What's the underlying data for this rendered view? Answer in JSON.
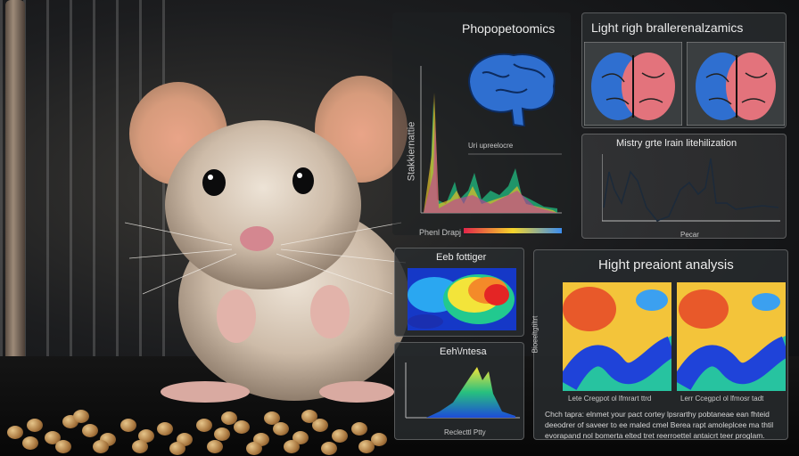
{
  "panels": {
    "top_left_title": "Phopopetoomics",
    "top_right_title": "Light righ brallerenalzamics",
    "mid_right_title": "Mistry grte lrain litehilization",
    "heatmap_small_title": "Eeb fottiger",
    "histogram_small_title": "Eeh\\/ntesa",
    "analysis_title": "Hight preaiont analysis",
    "chart_axis_labels": [
      "Stakkiernattie",
      "Phenl Drapj"
    ],
    "analysis_axis_label": "Bioeeltgtiltrt",
    "spectrum_label": "Uri upreelocre",
    "wave_axis_label": "Pecar",
    "histogram_axis_label": "Reclecttl Ptty",
    "heatmap_captions": [
      "Lete Cregpot ol lfmrart ttrd",
      "Lerr Ccegpcl ol lfmosr tadt"
    ],
    "caption_text": "Chch tapra: elnmet your pact cortey lpsrarthy pobtaneae ean fhteid deeodrer of saveer to ee maled cmel Berea rapt amoleplcee ma thtil evorapand nol bomerta elted tret reerroettel antaicrt teer proglam."
  },
  "colors": {
    "brain_blue": "#2f6fd0",
    "brain_pink": "#e3737c",
    "panel_bg": "#2c3032"
  }
}
